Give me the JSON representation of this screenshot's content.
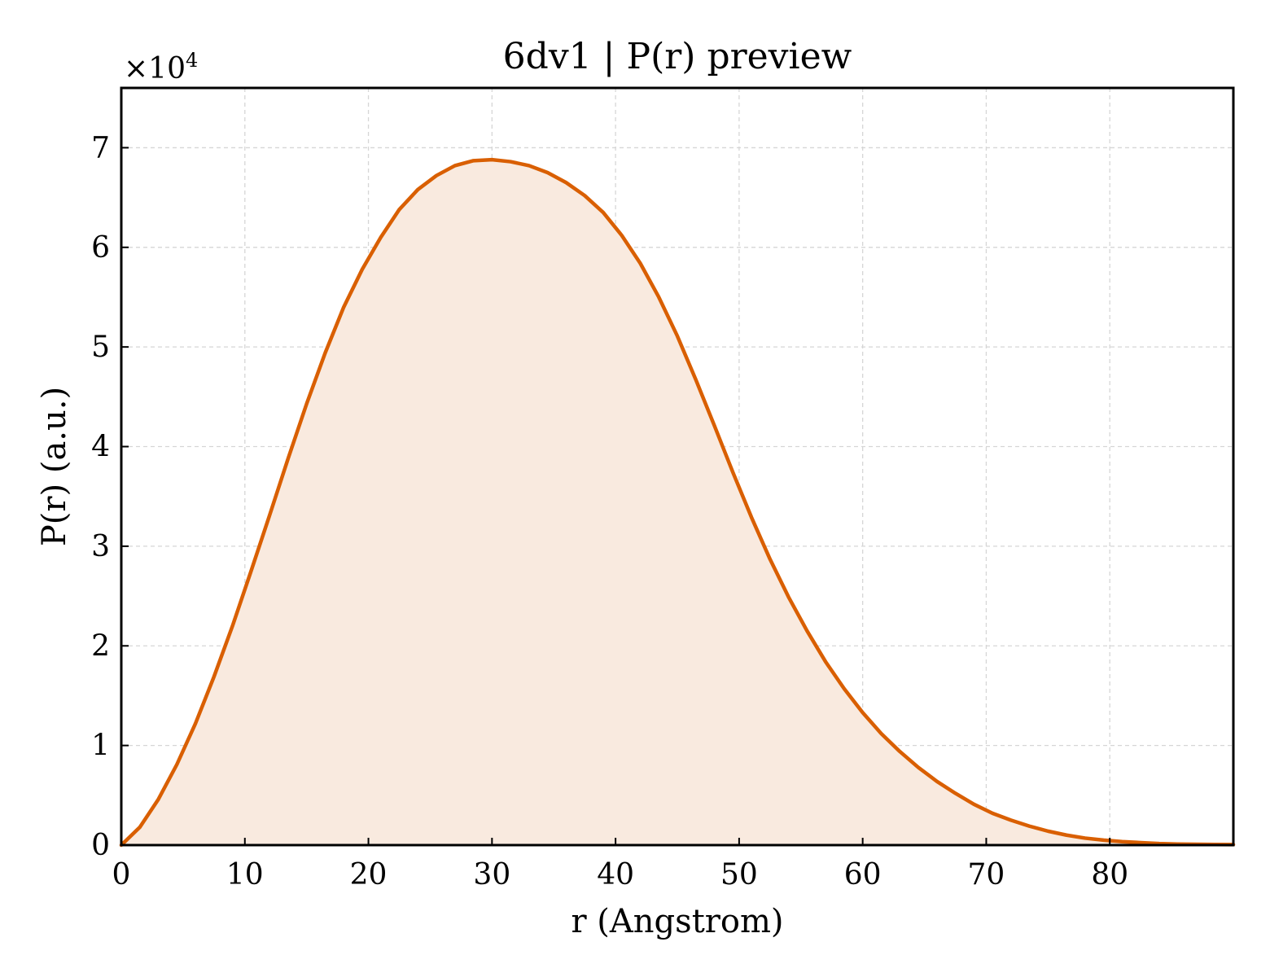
{
  "chart_data": {
    "type": "area",
    "title": "6dv1 | P(r) preview",
    "xlabel": "r (Angstrom)",
    "ylabel": "P(r) (a.u.)",
    "y_multiplier": {
      "base": "×10",
      "exponent": "4"
    },
    "xlim": [
      0,
      90
    ],
    "ylim": [
      0,
      7.6
    ],
    "xticks": [
      0,
      10,
      20,
      30,
      40,
      50,
      60,
      70,
      80
    ],
    "yticks": [
      0,
      1,
      2,
      3,
      4,
      5,
      6,
      7
    ],
    "grid": true,
    "colors": {
      "line": "#d95f02",
      "fill": "#f9eadf"
    },
    "series": [
      {
        "x": [
          0,
          1.5,
          3,
          4.5,
          6,
          7.5,
          9,
          10.5,
          12,
          13.5,
          15,
          16.5,
          18,
          19.5,
          21,
          22.5,
          24,
          25.5,
          27,
          28.5,
          30,
          31.5,
          33,
          34.5,
          36,
          37.5,
          39,
          40.5,
          42,
          43.5,
          45,
          46.5,
          48,
          49.5,
          51,
          52.5,
          54,
          55.5,
          57,
          58.5,
          60,
          61.5,
          63,
          64.5,
          66,
          67.5,
          69,
          70.5,
          72,
          73.5,
          75,
          76.5,
          78,
          79.5,
          81,
          82.5,
          84,
          85.5,
          87,
          88.5,
          90
        ],
        "values": [
          0,
          0.18,
          0.46,
          0.81,
          1.22,
          1.69,
          2.2,
          2.75,
          3.31,
          3.88,
          4.43,
          4.94,
          5.4,
          5.78,
          6.1,
          6.38,
          6.58,
          6.72,
          6.82,
          6.87,
          6.88,
          6.86,
          6.82,
          6.75,
          6.65,
          6.52,
          6.35,
          6.12,
          5.84,
          5.5,
          5.11,
          4.67,
          4.21,
          3.74,
          3.29,
          2.87,
          2.49,
          2.15,
          1.84,
          1.57,
          1.33,
          1.12,
          0.94,
          0.78,
          0.64,
          0.52,
          0.41,
          0.32,
          0.25,
          0.19,
          0.14,
          0.1,
          0.07,
          0.05,
          0.035,
          0.025,
          0.015,
          0.01,
          0.008,
          0.006,
          0.005
        ]
      }
    ]
  }
}
